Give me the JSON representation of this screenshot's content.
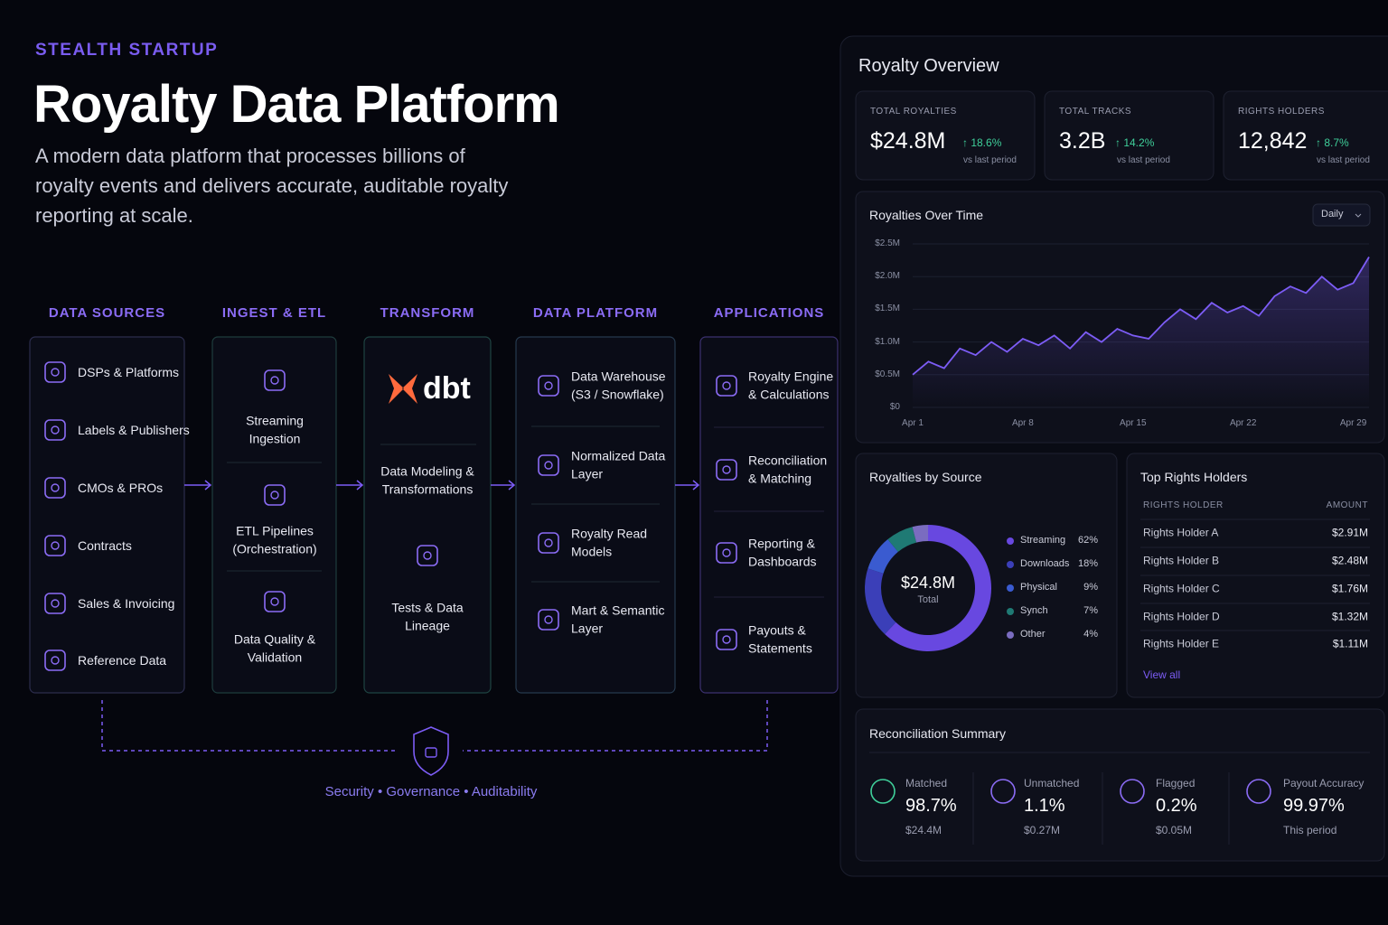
{
  "header": {
    "eyebrow": "STEALTH STARTUP",
    "title": "Royalty Data Platform",
    "description": "A modern data platform that processes billions of royalty events and delivers accurate, auditable royalty reporting at scale."
  },
  "pipeline": {
    "columns": [
      {
        "title": "DATA SOURCES",
        "items": [
          "DSPs & Platforms",
          "Labels & Publishers",
          "CMOs & PROs",
          "Contracts",
          "Sales & Invoicing",
          "Reference Data"
        ]
      },
      {
        "title": "INGEST & ETL",
        "items": [
          "Streaming Ingestion",
          "ETL Pipelines (Orchestration)",
          "Data Quality & Validation"
        ]
      },
      {
        "title": "TRANSFORM",
        "logo": "dbt",
        "items": [
          "Data Modeling & Transformations",
          "Tests & Data Lineage"
        ]
      },
      {
        "title": "DATA PLATFORM",
        "items": [
          "Data Warehouse (S3 / Snowflake)",
          "Normalized Data Layer",
          "Royalty Read Models",
          "Mart & Semantic Layer"
        ]
      },
      {
        "title": "APPLICATIONS",
        "items": [
          "Royalty Engine & Calculations",
          "Reconciliation & Matching",
          "Reporting & Dashboards",
          "Payouts & Statements"
        ]
      }
    ],
    "footer": "Security • Governance • Auditability"
  },
  "dashboard": {
    "title": "Royalty Overview",
    "kpis": [
      {
        "label": "TOTAL ROYALTIES",
        "value": "$24.8M",
        "change": "↑ 18.6%",
        "note": "vs last period"
      },
      {
        "label": "TOTAL TRACKS",
        "value": "3.2B",
        "change": "↑ 14.2%",
        "note": "vs last period"
      },
      {
        "label": "RIGHTS HOLDERS",
        "value": "12,842",
        "change": "↑ 8.7%",
        "note": "vs last period"
      }
    ],
    "table": {
      "title": "Top Rights Holders",
      "columns": [
        "RIGHTS HOLDER",
        "AMOUNT"
      ],
      "rows": [
        [
          "Rights Holder A",
          "$2.91M"
        ],
        [
          "Rights Holder B",
          "$2.48M"
        ],
        [
          "Rights Holder C",
          "$1.76M"
        ],
        [
          "Rights Holder D",
          "$1.32M"
        ],
        [
          "Rights Holder E",
          "$1.11M"
        ]
      ],
      "link": "View all"
    },
    "reconciliation": {
      "title": "Reconciliation Summary",
      "items": [
        {
          "label": "Matched",
          "value": "98.7%",
          "note": "$24.4M"
        },
        {
          "label": "Unmatched",
          "value": "1.1%",
          "note": "$0.27M"
        },
        {
          "label": "Flagged",
          "value": "0.2%",
          "note": "$0.05M"
        },
        {
          "label": "Payout Accuracy",
          "value": "99.97%",
          "note": "This period"
        }
      ]
    }
  },
  "chart_data": [
    {
      "type": "line",
      "title": "Royalties Over Time",
      "control": "Daily",
      "color": "#7c5cf5",
      "grid": true,
      "categories": [
        "Apr 1",
        null,
        null,
        null,
        null,
        null,
        null,
        "Apr 8",
        null,
        null,
        null,
        null,
        null,
        null,
        "Apr 15",
        null,
        null,
        null,
        null,
        null,
        null,
        "Apr 22",
        null,
        null,
        null,
        null,
        null,
        null,
        "Apr 29",
        null
      ],
      "values": [
        500000,
        700000,
        600000,
        900000,
        800000,
        1000000,
        850000,
        1050000,
        950000,
        1100000,
        900000,
        1150000,
        1000000,
        1200000,
        1100000,
        1050000,
        1300000,
        1500000,
        1350000,
        1600000,
        1450000,
        1550000,
        1400000,
        1700000,
        1850000,
        1750000,
        2000000,
        1800000,
        1900000,
        2300000
      ],
      "ylim": [
        0,
        2500000
      ],
      "yticks": [
        {
          "value": 0,
          "label": "$0"
        },
        {
          "value": 500000,
          "label": "$0.5M"
        },
        {
          "value": 1000000,
          "label": "$1.0M"
        },
        {
          "value": 1500000,
          "label": "$1.5M"
        },
        {
          "value": 2000000,
          "label": "$2.0M"
        },
        {
          "value": 2500000,
          "label": "$2.5M"
        }
      ]
    },
    {
      "type": "pie",
      "title": "Royalties by Source",
      "center_value": "$24.8M",
      "center_label": "Total",
      "categories": [
        "Streaming",
        "Downloads",
        "Physical",
        "Synch",
        "Other"
      ],
      "values": [
        62,
        18,
        9,
        7,
        4
      ],
      "value_labels": [
        "62%",
        "18%",
        "9%",
        "7%",
        "4%"
      ],
      "colors": [
        "#6848e0",
        "#3b3fb8",
        "#3a5bd0",
        "#1f7a74",
        "#7a6cc0"
      ]
    }
  ]
}
